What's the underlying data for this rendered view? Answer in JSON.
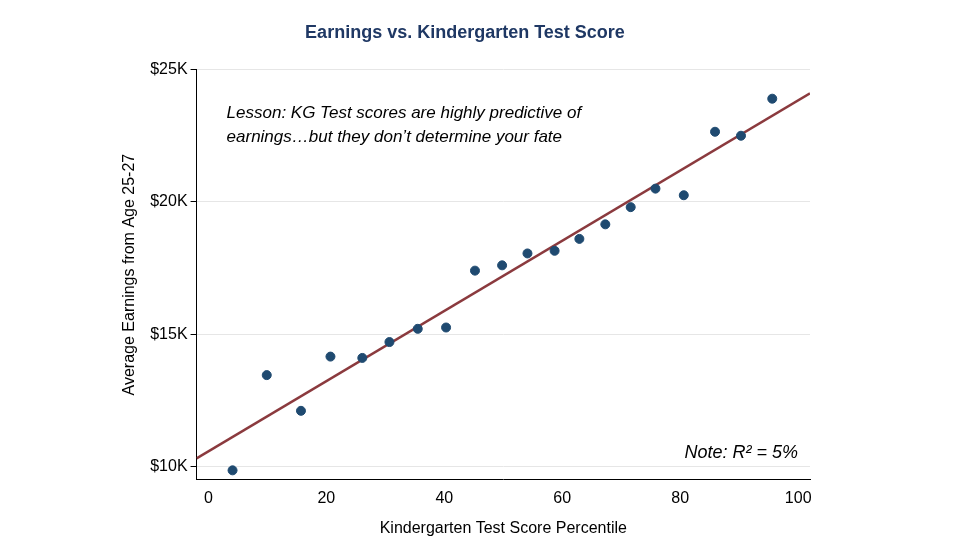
{
  "chart_data": {
    "type": "scatter",
    "title": "Earnings vs. Kindergarten Test Score",
    "x_label": "Kindergarten Test Score Percentile",
    "y_label": "Average Earnings from Age 25-27",
    "annotations": [
      {
        "lines": [
          "Lesson: KG Test scores are highly predictive of",
          "earnings…but they don’t determine your fate"
        ]
      },
      {
        "lines": [
          "Note: R² = 5%"
        ]
      }
    ],
    "series": [
      {
        "type": "scatter",
        "color": "#1f4a70",
        "marker": "circle",
        "x": [
          4.1,
          9.9,
          15.7,
          20.7,
          26.1,
          30.7,
          35.5,
          40.3,
          45.2,
          49.8,
          54.1,
          58.7,
          62.9,
          67.3,
          71.6,
          75.8,
          80.6,
          85.9,
          90.3,
          95.6
        ],
        "values": [
          9850,
          13450,
          12100,
          14150,
          14100,
          14700,
          15200,
          15250,
          17400,
          17600,
          18050,
          18150,
          18600,
          19150,
          19800,
          20500,
          20250,
          22650,
          22500,
          23900
        ]
      },
      {
        "type": "line",
        "color": "#8b3a3e",
        "line_style": "solid",
        "x": [
          -2,
          102
        ],
        "values": [
          10300,
          24100
        ]
      }
    ],
    "xlim": [
      -2,
      102
    ],
    "xticks": [
      0,
      20,
      40,
      60,
      80,
      100
    ],
    "ylim": [
      9500,
      25000
    ],
    "yticks": [
      {
        "value": 10000,
        "label": "$10K"
      },
      {
        "value": 15000,
        "label": "$15K"
      },
      {
        "value": 20000,
        "label": "$20K"
      },
      {
        "value": 25000,
        "label": "$25K"
      }
    ],
    "grid": true
  }
}
